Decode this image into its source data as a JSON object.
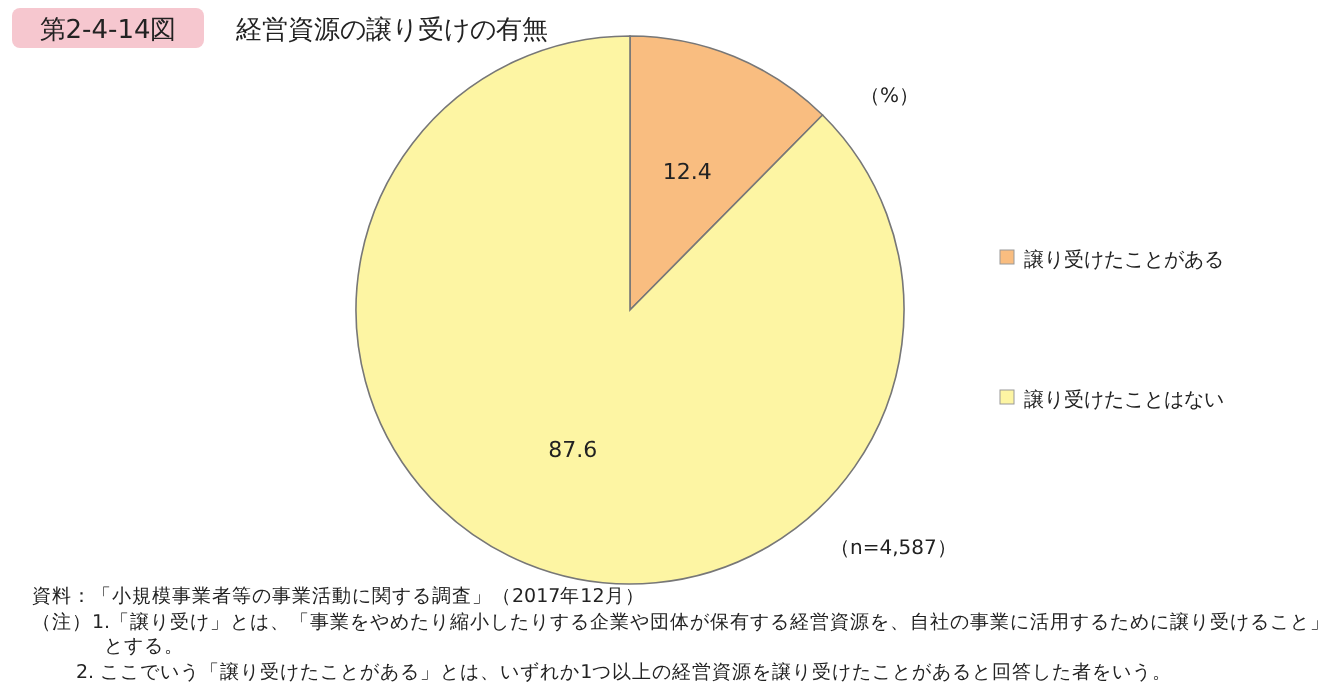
{
  "chart_data": {
    "type": "pie",
    "title": "経営資源の譲り受けの有無",
    "categories": [
      "譲り受けたことがある",
      "譲り受けたことはない"
    ],
    "values": [
      12.4,
      87.6
    ],
    "colors": [
      "#f9bd80",
      "#fdf5a3"
    ],
    "data_labels": true,
    "legend": "right",
    "annotations": [
      "第2-4-14図",
      "（%）",
      "（n=4,587）",
      "資料：「小規模事業者等の事業活動に関する調査」（2017年12月）",
      "（注）1.「譲り受け」とは、「事業をやめたり縮小したりする企業や団体が保有する経営資源を、自社の事業に活用するために譲り受けること」とする。",
      "2. ここでいう「譲り受けたことがある」とは、いずれか1つ以上の経営資源を譲り受けたことがあると回答した者をいう。"
    ]
  }
}
